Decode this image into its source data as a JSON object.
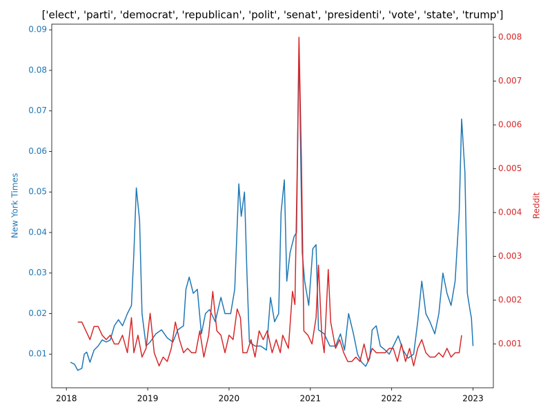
{
  "chart_data": {
    "type": "line",
    "title": "['elect', 'parti', 'democrat', 'republican', 'polit', 'senat', 'presidenti', 'vote', 'state', 'trump']",
    "ylabel": "New York Times",
    "y2label": "Reddit",
    "xlim": [
      2017.82,
      2023.25
    ],
    "xticks": [
      2018,
      2019,
      2020,
      2021,
      2022,
      2023
    ],
    "ylim": [
      0.0017,
      0.0914
    ],
    "yticks": [
      0.01,
      0.02,
      0.03,
      0.04,
      0.05,
      0.06,
      0.07,
      0.08,
      0.09
    ],
    "y2lim": [
      0,
      0.0083
    ],
    "y2ticks": [
      0.001,
      0.002,
      0.003,
      0.004,
      0.005,
      0.006,
      0.007,
      0.008
    ],
    "series": [
      {
        "name": "New York Times",
        "color": "#1f77b4",
        "x": [
          2018.05,
          2018.1,
          2018.14,
          2018.19,
          2018.22,
          2018.25,
          2018.29,
          2018.34,
          2018.39,
          2018.44,
          2018.49,
          2018.54,
          2018.59,
          2018.64,
          2018.69,
          2018.75,
          2018.8,
          2018.83,
          2018.86,
          2018.9,
          2018.93,
          2018.98,
          2019.03,
          2019.1,
          2019.17,
          2019.24,
          2019.31,
          2019.37,
          2019.44,
          2019.47,
          2019.51,
          2019.56,
          2019.61,
          2019.66,
          2019.71,
          2019.76,
          2019.83,
          2019.9,
          2019.95,
          2020.02,
          2020.07,
          2020.12,
          2020.15,
          2020.19,
          2020.22,
          2020.25,
          2020.32,
          2020.39,
          2020.46,
          2020.51,
          2020.56,
          2020.61,
          2020.64,
          2020.68,
          2020.71,
          2020.75,
          2020.8,
          2020.83,
          2020.86,
          2020.9,
          2020.93,
          2020.98,
          2021.03,
          2021.07,
          2021.1,
          2021.17,
          2021.24,
          2021.31,
          2021.37,
          2021.42,
          2021.47,
          2021.53,
          2021.58,
          2021.63,
          2021.68,
          2021.73,
          2021.76,
          2021.81,
          2021.86,
          2021.92,
          2021.97,
          2022.02,
          2022.08,
          2022.14,
          2022.2,
          2022.27,
          2022.32,
          2022.37,
          2022.42,
          2022.47,
          2022.53,
          2022.58,
          2022.63,
          2022.68,
          2022.73,
          2022.78,
          2022.83,
          2022.86,
          2022.9,
          2022.93,
          2022.97,
          2022.98,
          2023.0
        ],
        "values": [
          0.008,
          0.0075,
          0.006,
          0.0065,
          0.01,
          0.0105,
          0.008,
          0.011,
          0.012,
          0.0135,
          0.013,
          0.0135,
          0.017,
          0.0185,
          0.017,
          0.02,
          0.022,
          0.035,
          0.051,
          0.043,
          0.02,
          0.012,
          0.013,
          0.015,
          0.016,
          0.014,
          0.013,
          0.016,
          0.017,
          0.026,
          0.029,
          0.025,
          0.026,
          0.015,
          0.02,
          0.021,
          0.018,
          0.024,
          0.02,
          0.02,
          0.026,
          0.052,
          0.044,
          0.05,
          0.03,
          0.013,
          0.012,
          0.012,
          0.011,
          0.024,
          0.018,
          0.02,
          0.045,
          0.053,
          0.028,
          0.035,
          0.039,
          0.04,
          0.086,
          0.035,
          0.028,
          0.022,
          0.036,
          0.037,
          0.016,
          0.015,
          0.012,
          0.012,
          0.015,
          0.011,
          0.02,
          0.015,
          0.01,
          0.008,
          0.007,
          0.009,
          0.016,
          0.017,
          0.012,
          0.011,
          0.01,
          0.012,
          0.0145,
          0.011,
          0.009,
          0.01,
          0.018,
          0.028,
          0.02,
          0.018,
          0.015,
          0.02,
          0.03,
          0.025,
          0.022,
          0.028,
          0.045,
          0.068,
          0.055,
          0.025,
          0.02,
          0.019,
          0.012
        ]
      },
      {
        "name": "Reddit",
        "color": "#d62728",
        "axis": "y2",
        "x": [
          2018.14,
          2018.19,
          2018.24,
          2018.29,
          2018.34,
          2018.39,
          2018.44,
          2018.49,
          2018.54,
          2018.59,
          2018.64,
          2018.69,
          2018.75,
          2018.8,
          2018.83,
          2018.88,
          2018.93,
          2018.98,
          2019.03,
          2019.08,
          2019.14,
          2019.19,
          2019.24,
          2019.29,
          2019.34,
          2019.39,
          2019.44,
          2019.49,
          2019.54,
          2019.59,
          2019.64,
          2019.69,
          2019.75,
          2019.8,
          2019.85,
          2019.9,
          2019.95,
          2020.0,
          2020.05,
          2020.1,
          2020.14,
          2020.17,
          2020.22,
          2020.27,
          2020.32,
          2020.37,
          2020.42,
          2020.47,
          2020.53,
          2020.58,
          2020.63,
          2020.66,
          2020.73,
          2020.78,
          2020.81,
          2020.84,
          2020.86,
          2020.89,
          2020.92,
          2020.97,
          2021.02,
          2021.07,
          2021.1,
          2021.14,
          2021.17,
          2021.22,
          2021.25,
          2021.31,
          2021.36,
          2021.41,
          2021.46,
          2021.51,
          2021.56,
          2021.61,
          2021.66,
          2021.71,
          2021.76,
          2021.81,
          2021.86,
          2021.92,
          2021.97,
          2022.02,
          2022.07,
          2022.12,
          2022.17,
          2022.22,
          2022.27,
          2022.32,
          2022.37,
          2022.42,
          2022.47,
          2022.53,
          2022.58,
          2022.63,
          2022.68,
          2022.73,
          2022.78,
          2022.83,
          2022.86
        ],
        "values": [
          0.0015,
          0.0015,
          0.0013,
          0.0011,
          0.0014,
          0.0014,
          0.0012,
          0.0011,
          0.0012,
          0.001,
          0.001,
          0.0012,
          0.0008,
          0.0016,
          0.0008,
          0.0012,
          0.0007,
          0.0009,
          0.0017,
          0.0008,
          0.0005,
          0.0007,
          0.0006,
          0.0009,
          0.0015,
          0.0011,
          0.0008,
          0.0009,
          0.0008,
          0.0008,
          0.0013,
          0.0007,
          0.0012,
          0.0022,
          0.0013,
          0.0012,
          0.0008,
          0.0012,
          0.0011,
          0.0018,
          0.0016,
          0.0008,
          0.0008,
          0.0011,
          0.0007,
          0.0013,
          0.0011,
          0.0013,
          0.0008,
          0.0011,
          0.0008,
          0.0012,
          0.0009,
          0.0022,
          0.0019,
          0.0052,
          0.008,
          0.0052,
          0.0013,
          0.0012,
          0.001,
          0.0016,
          0.0028,
          0.0012,
          0.0008,
          0.0027,
          0.0015,
          0.0009,
          0.0011,
          0.0008,
          0.0006,
          0.0006,
          0.0007,
          0.0006,
          0.001,
          0.0006,
          0.0009,
          0.0008,
          0.0008,
          0.0008,
          0.0009,
          0.0009,
          0.0006,
          0.001,
          0.0006,
          0.0009,
          0.0005,
          0.0009,
          0.0011,
          0.0008,
          0.0007,
          0.0007,
          0.0008,
          0.0007,
          0.0009,
          0.0007,
          0.0008,
          0.0008,
          0.0012
        ]
      }
    ]
  }
}
